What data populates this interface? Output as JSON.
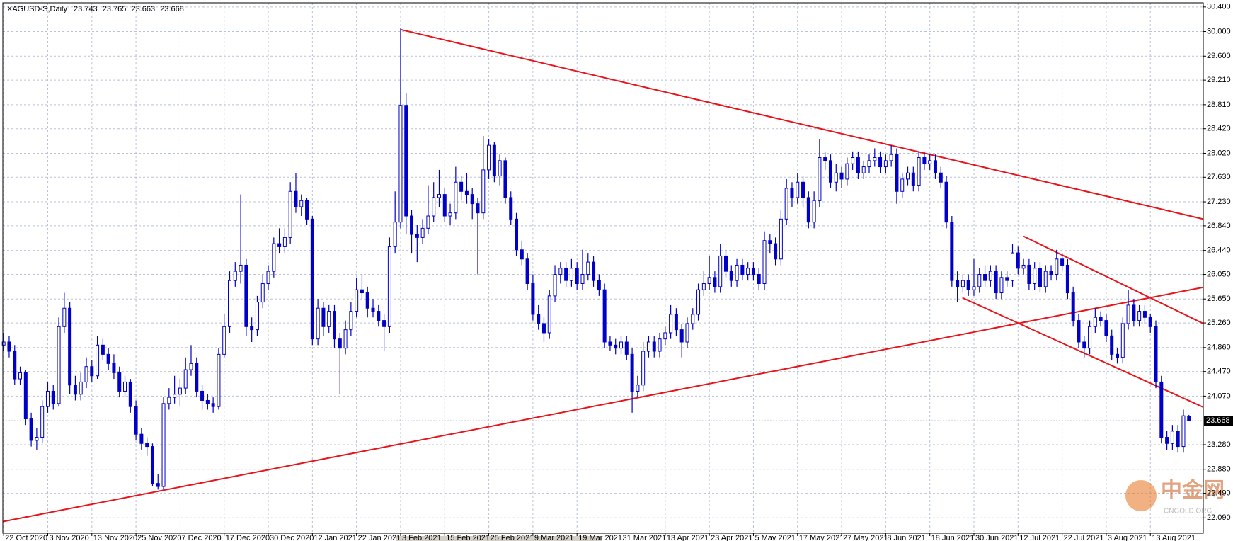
{
  "chart_data": {
    "type": "candlestick",
    "symbol": "XAGUSD-S,Daily",
    "color": "#0000c8",
    "trendline_color": "#e8141b",
    "grid": true,
    "watermark": "中金网",
    "watermark_sub": "CNGOLD.ORG",
    "xlim": [
      -0.15,
      217.6
    ],
    "ylim": [
      21.84,
      30.467
    ],
    "yticks": [
      {
        "value": 30.4,
        "label": "30.400"
      },
      {
        "value": 30.0,
        "label": "30.000"
      },
      {
        "value": 29.6,
        "label": "29.600"
      },
      {
        "value": 29.21,
        "label": "29.210"
      },
      {
        "value": 28.81,
        "label": "28.810"
      },
      {
        "value": 28.42,
        "label": "28.420"
      },
      {
        "value": 28.02,
        "label": "28.020"
      },
      {
        "value": 27.63,
        "label": "27.630"
      },
      {
        "value": 27.23,
        "label": "27.230"
      },
      {
        "value": 26.84,
        "label": "26.840"
      },
      {
        "value": 26.44,
        "label": "26.440"
      },
      {
        "value": 26.05,
        "label": "26.050"
      },
      {
        "value": 25.65,
        "label": "25.650"
      },
      {
        "value": 25.26,
        "label": "25.260"
      },
      {
        "value": 24.86,
        "label": "24.860"
      },
      {
        "value": 24.47,
        "label": "24.470"
      },
      {
        "value": 24.07,
        "label": "24.070"
      },
      {
        "value": 23.28,
        "label": "23.280"
      },
      {
        "value": 22.88,
        "label": "22.880"
      },
      {
        "value": 22.49,
        "label": "22.490"
      },
      {
        "value": 22.09,
        "label": "22.090"
      }
    ],
    "xticks": [
      {
        "value": 0,
        "label": "22 Oct 2020"
      },
      {
        "value": 8,
        "label": "3 Nov 2020"
      },
      {
        "value": 16,
        "label": "13 Nov 2020"
      },
      {
        "value": 24,
        "label": "25 Nov 2020"
      },
      {
        "value": 32,
        "label": "7 Dec 2020"
      },
      {
        "value": 40,
        "label": "17 Dec 2020"
      },
      {
        "value": 48,
        "label": "30 Dec 2020"
      },
      {
        "value": 56,
        "label": "12 Jan 2021"
      },
      {
        "value": 64,
        "label": "22 Jan 2021"
      },
      {
        "value": 72,
        "label": "3 Feb 2021"
      },
      {
        "value": 80,
        "label": "15 Feb 2021"
      },
      {
        "value": 88,
        "label": "25 Feb 2021"
      },
      {
        "value": 96,
        "label": "9 Mar 2021"
      },
      {
        "value": 104,
        "label": "19 Mar 2021"
      },
      {
        "value": 112,
        "label": "31 Mar 2021"
      },
      {
        "value": 120,
        "label": "13 Apr 2021"
      },
      {
        "value": 128,
        "label": "23 Apr 2021"
      },
      {
        "value": 136,
        "label": "5 May 2021"
      },
      {
        "value": 144,
        "label": "17 May 2021"
      },
      {
        "value": 152,
        "label": "27 May 2021"
      },
      {
        "value": 160,
        "label": "8 Jun 2021"
      },
      {
        "value": 168,
        "label": "18 Jun 2021"
      },
      {
        "value": 176,
        "label": "30 Jun 2021"
      },
      {
        "value": 184,
        "label": "12 Jul 2021"
      },
      {
        "value": 192,
        "label": "22 Jul 2021"
      },
      {
        "value": 200,
        "label": "3 Aug 2021"
      },
      {
        "value": 208,
        "label": "13 Aug 2021"
      }
    ],
    "trendlines": [
      [
        72.1,
        30.03,
        217.6,
        26.95
      ],
      [
        -0.1,
        22.03,
        217.6,
        25.84
      ],
      [
        185,
        26.67,
        217.6,
        25.25
      ],
      [
        173.9,
        25.67,
        217.6,
        23.89
      ]
    ],
    "candles": [
      [
        24.9,
        25.1,
        24.8,
        24.95
      ],
      [
        24.95,
        25.05,
        24.7,
        24.8
      ],
      [
        24.8,
        24.9,
        24.25,
        24.35
      ],
      [
        24.35,
        24.55,
        24.25,
        24.45
      ],
      [
        24.45,
        24.5,
        23.6,
        23.7
      ],
      [
        23.7,
        23.8,
        23.25,
        23.35
      ],
      [
        23.35,
        23.55,
        23.2,
        23.4
      ],
      [
        23.4,
        24.0,
        23.3,
        23.9
      ],
      [
        23.9,
        24.3,
        23.8,
        24.15
      ],
      [
        24.15,
        24.25,
        23.85,
        23.95
      ],
      [
        23.95,
        25.35,
        23.9,
        25.2
      ],
      [
        25.2,
        25.75,
        25.1,
        25.5
      ],
      [
        25.5,
        25.6,
        24.1,
        24.25
      ],
      [
        24.25,
        24.4,
        24.0,
        24.1
      ],
      [
        24.1,
        24.45,
        24.0,
        24.3
      ],
      [
        24.3,
        24.7,
        24.2,
        24.55
      ],
      [
        24.55,
        24.65,
        24.3,
        24.4
      ],
      [
        24.4,
        25.05,
        24.35,
        24.9
      ],
      [
        24.9,
        25.0,
        24.65,
        24.75
      ],
      [
        24.75,
        24.85,
        24.5,
        24.6
      ],
      [
        24.6,
        24.75,
        24.35,
        24.45
      ],
      [
        24.45,
        24.55,
        24.05,
        24.15
      ],
      [
        24.15,
        24.4,
        24.05,
        24.3
      ],
      [
        24.3,
        24.35,
        23.8,
        23.9
      ],
      [
        23.9,
        24.0,
        23.35,
        23.45
      ],
      [
        23.45,
        23.55,
        23.2,
        23.3
      ],
      [
        23.3,
        23.4,
        23.1,
        23.25
      ],
      [
        23.25,
        23.3,
        22.6,
        22.65
      ],
      [
        22.65,
        22.8,
        22.55,
        22.6
      ],
      [
        22.6,
        24.05,
        22.55,
        23.95
      ],
      [
        23.95,
        24.2,
        23.85,
        24.05
      ],
      [
        24.05,
        24.4,
        23.95,
        24.1
      ],
      [
        24.1,
        24.35,
        23.9,
        24.2
      ],
      [
        24.2,
        24.7,
        24.1,
        24.5
      ],
      [
        24.5,
        24.9,
        24.4,
        24.6
      ],
      [
        24.6,
        24.7,
        24.05,
        24.15
      ],
      [
        24.15,
        24.25,
        23.85,
        24.0
      ],
      [
        24.0,
        24.1,
        23.85,
        23.95
      ],
      [
        23.95,
        24.05,
        23.8,
        23.9
      ],
      [
        23.9,
        24.85,
        23.85,
        24.75
      ],
      [
        24.75,
        25.4,
        24.7,
        25.2
      ],
      [
        25.2,
        26.1,
        25.1,
        25.95
      ],
      [
        25.95,
        26.25,
        25.85,
        26.1
      ],
      [
        26.1,
        27.35,
        25.9,
        26.2
      ],
      [
        26.2,
        26.3,
        25.05,
        25.2
      ],
      [
        25.2,
        25.35,
        24.95,
        25.15
      ],
      [
        25.15,
        25.7,
        25.05,
        25.6
      ],
      [
        25.6,
        26.05,
        25.5,
        25.9
      ],
      [
        25.9,
        26.2,
        25.8,
        26.1
      ],
      [
        26.1,
        26.65,
        26.0,
        26.55
      ],
      [
        26.55,
        26.8,
        26.4,
        26.5
      ],
      [
        26.5,
        26.8,
        26.4,
        26.65
      ],
      [
        26.65,
        27.55,
        26.55,
        27.4
      ],
      [
        27.4,
        27.7,
        27.05,
        27.15
      ],
      [
        27.15,
        27.35,
        27.0,
        27.25
      ],
      [
        27.25,
        27.3,
        26.85,
        26.95
      ],
      [
        26.95,
        27.0,
        24.9,
        25.0
      ],
      [
        25.0,
        25.65,
        24.9,
        25.5
      ],
      [
        25.5,
        25.6,
        25.05,
        25.2
      ],
      [
        25.2,
        25.55,
        25.1,
        25.45
      ],
      [
        25.45,
        25.55,
        24.85,
        25.0
      ],
      [
        25.0,
        25.1,
        24.1,
        24.85
      ],
      [
        24.85,
        25.3,
        24.75,
        25.15
      ],
      [
        25.15,
        25.6,
        25.05,
        25.45
      ],
      [
        25.45,
        26.0,
        25.35,
        25.8
      ],
      [
        25.8,
        26.05,
        25.65,
        25.75
      ],
      [
        25.75,
        25.85,
        25.35,
        25.5
      ],
      [
        25.5,
        25.65,
        25.35,
        25.45
      ],
      [
        25.45,
        25.55,
        25.2,
        25.3
      ],
      [
        25.3,
        25.4,
        24.8,
        25.2
      ],
      [
        25.2,
        26.65,
        25.1,
        26.5
      ],
      [
        26.5,
        27.4,
        26.4,
        26.9
      ],
      [
        26.9,
        30.05,
        26.8,
        28.8
      ],
      [
        28.8,
        29.0,
        26.7,
        27.0
      ],
      [
        27.0,
        27.1,
        26.4,
        26.7
      ],
      [
        26.7,
        26.85,
        26.25,
        26.65
      ],
      [
        26.65,
        26.95,
        26.55,
        26.8
      ],
      [
        26.8,
        27.5,
        26.7,
        27.0
      ],
      [
        27.0,
        27.55,
        26.9,
        27.3
      ],
      [
        27.3,
        27.75,
        27.15,
        27.35
      ],
      [
        27.35,
        27.45,
        26.9,
        27.0
      ],
      [
        27.0,
        27.2,
        26.85,
        27.05
      ],
      [
        27.05,
        27.8,
        26.95,
        27.55
      ],
      [
        27.55,
        27.65,
        27.25,
        27.4
      ],
      [
        27.4,
        27.7,
        27.2,
        27.35
      ],
      [
        27.35,
        27.45,
        26.95,
        27.2
      ],
      [
        27.2,
        27.3,
        26.05,
        27.05
      ],
      [
        27.05,
        28.3,
        26.95,
        27.75
      ],
      [
        27.75,
        28.25,
        27.6,
        28.15
      ],
      [
        28.15,
        28.2,
        27.55,
        27.65
      ],
      [
        27.65,
        28.0,
        27.5,
        27.9
      ],
      [
        27.9,
        27.95,
        27.2,
        27.3
      ],
      [
        27.3,
        27.4,
        26.85,
        26.95
      ],
      [
        26.95,
        27.05,
        26.35,
        26.45
      ],
      [
        26.45,
        26.6,
        26.2,
        26.3
      ],
      [
        26.3,
        26.4,
        25.8,
        25.9
      ],
      [
        25.9,
        26.05,
        25.3,
        25.4
      ],
      [
        25.4,
        25.55,
        25.15,
        25.25
      ],
      [
        25.25,
        25.35,
        24.95,
        25.1
      ],
      [
        25.1,
        25.8,
        25.0,
        25.7
      ],
      [
        25.7,
        26.2,
        25.6,
        26.05
      ],
      [
        26.05,
        26.25,
        25.9,
        26.15
      ],
      [
        26.15,
        26.25,
        25.85,
        25.95
      ],
      [
        25.95,
        26.3,
        25.85,
        26.15
      ],
      [
        26.15,
        26.25,
        25.8,
        25.9
      ],
      [
        25.9,
        26.45,
        25.8,
        26.05
      ],
      [
        26.05,
        26.4,
        25.95,
        26.25
      ],
      [
        26.25,
        26.35,
        25.85,
        25.95
      ],
      [
        25.95,
        26.05,
        25.7,
        25.8
      ],
      [
        25.8,
        25.9,
        24.85,
        24.95
      ],
      [
        24.95,
        25.05,
        24.8,
        24.9
      ],
      [
        24.9,
        25.0,
        24.75,
        24.85
      ],
      [
        24.85,
        25.05,
        24.75,
        24.95
      ],
      [
        24.95,
        25.05,
        24.65,
        24.75
      ],
      [
        24.75,
        24.85,
        23.8,
        24.15
      ],
      [
        24.15,
        24.4,
        24.05,
        24.25
      ],
      [
        24.25,
        24.95,
        24.15,
        24.8
      ],
      [
        24.8,
        25.05,
        24.7,
        24.95
      ],
      [
        24.95,
        25.05,
        24.7,
        24.8
      ],
      [
        24.8,
        25.1,
        24.7,
        25.0
      ],
      [
        25.0,
        25.2,
        24.9,
        25.1
      ],
      [
        25.1,
        25.55,
        25.0,
        25.4
      ],
      [
        25.4,
        25.5,
        25.05,
        25.15
      ],
      [
        25.15,
        25.25,
        24.7,
        24.95
      ],
      [
        24.95,
        25.35,
        24.85,
        25.25
      ],
      [
        25.25,
        25.5,
        25.15,
        25.4
      ],
      [
        25.4,
        25.9,
        25.3,
        25.8
      ],
      [
        25.8,
        26.1,
        25.7,
        25.9
      ],
      [
        25.9,
        26.35,
        25.8,
        26.0
      ],
      [
        26.0,
        26.1,
        25.75,
        25.85
      ],
      [
        25.85,
        26.55,
        25.75,
        26.35
      ],
      [
        26.35,
        26.45,
        26.0,
        26.1
      ],
      [
        26.1,
        26.2,
        25.85,
        25.95
      ],
      [
        25.95,
        26.3,
        25.85,
        26.2
      ],
      [
        26.2,
        26.3,
        25.95,
        26.05
      ],
      [
        26.05,
        26.25,
        25.95,
        26.15
      ],
      [
        26.15,
        26.25,
        25.95,
        26.05
      ],
      [
        26.05,
        26.15,
        25.8,
        25.9
      ],
      [
        25.9,
        26.75,
        25.8,
        26.6
      ],
      [
        26.6,
        26.7,
        26.4,
        26.55
      ],
      [
        26.55,
        26.65,
        26.2,
        26.3
      ],
      [
        26.3,
        27.1,
        26.2,
        26.95
      ],
      [
        26.95,
        27.6,
        26.85,
        27.45
      ],
      [
        27.45,
        27.55,
        27.15,
        27.3
      ],
      [
        27.3,
        27.7,
        27.2,
        27.55
      ],
      [
        27.55,
        27.65,
        27.15,
        27.3
      ],
      [
        27.3,
        27.4,
        26.8,
        26.9
      ],
      [
        26.9,
        27.4,
        26.8,
        27.25
      ],
      [
        27.25,
        28.25,
        27.15,
        27.95
      ],
      [
        27.95,
        28.05,
        27.75,
        27.9
      ],
      [
        27.9,
        28.0,
        27.45,
        27.55
      ],
      [
        27.55,
        27.85,
        27.4,
        27.7
      ],
      [
        27.7,
        27.8,
        27.45,
        27.6
      ],
      [
        27.6,
        27.95,
        27.5,
        27.85
      ],
      [
        27.85,
        28.05,
        27.75,
        27.95
      ],
      [
        27.95,
        28.05,
        27.6,
        27.7
      ],
      [
        27.7,
        27.9,
        27.6,
        27.8
      ],
      [
        27.8,
        28.0,
        27.7,
        27.9
      ],
      [
        27.9,
        28.1,
        27.8,
        27.95
      ],
      [
        27.95,
        28.05,
        27.7,
        27.8
      ],
      [
        27.8,
        28.0,
        27.7,
        27.9
      ],
      [
        27.9,
        28.15,
        27.8,
        28.0
      ],
      [
        28.0,
        28.1,
        27.2,
        27.4
      ],
      [
        27.4,
        27.7,
        27.3,
        27.6
      ],
      [
        27.6,
        27.8,
        27.5,
        27.7
      ],
      [
        27.7,
        27.8,
        27.4,
        27.5
      ],
      [
        27.5,
        28.05,
        27.4,
        27.95
      ],
      [
        27.95,
        28.05,
        27.75,
        27.85
      ],
      [
        27.85,
        28.0,
        27.75,
        27.9
      ],
      [
        27.9,
        28.0,
        27.6,
        27.7
      ],
      [
        27.7,
        27.8,
        27.45,
        27.55
      ],
      [
        27.55,
        27.65,
        26.8,
        26.9
      ],
      [
        26.9,
        27.0,
        25.85,
        25.95
      ],
      [
        25.95,
        26.1,
        25.6,
        25.85
      ],
      [
        25.85,
        26.05,
        25.75,
        25.95
      ],
      [
        25.95,
        26.05,
        25.7,
        25.8
      ],
      [
        25.8,
        26.3,
        25.7,
        25.85
      ],
      [
        25.85,
        26.15,
        25.75,
        26.05
      ],
      [
        26.05,
        26.2,
        25.85,
        25.95
      ],
      [
        25.95,
        26.2,
        25.85,
        26.1
      ],
      [
        26.1,
        26.2,
        25.65,
        25.75
      ],
      [
        25.75,
        26.1,
        25.65,
        26.0
      ],
      [
        26.0,
        26.1,
        25.85,
        25.95
      ],
      [
        25.95,
        26.55,
        25.85,
        26.4
      ],
      [
        26.4,
        26.5,
        26.05,
        26.15
      ],
      [
        26.15,
        26.3,
        26.05,
        26.2
      ],
      [
        26.2,
        26.3,
        25.8,
        25.9
      ],
      [
        25.9,
        26.25,
        25.8,
        26.15
      ],
      [
        26.15,
        26.25,
        25.75,
        25.85
      ],
      [
        25.85,
        26.2,
        25.75,
        26.1
      ],
      [
        26.1,
        26.2,
        25.95,
        26.05
      ],
      [
        26.05,
        26.45,
        25.95,
        26.3
      ],
      [
        26.3,
        26.4,
        26.1,
        26.2
      ],
      [
        26.2,
        26.3,
        25.65,
        25.75
      ],
      [
        25.75,
        25.85,
        25.2,
        25.3
      ],
      [
        25.3,
        25.4,
        24.85,
        24.95
      ],
      [
        24.95,
        25.05,
        24.7,
        24.85
      ],
      [
        24.85,
        25.3,
        24.75,
        25.2
      ],
      [
        25.2,
        25.5,
        25.1,
        25.35
      ],
      [
        25.35,
        25.45,
        25.2,
        25.3
      ],
      [
        25.3,
        25.4,
        24.95,
        25.05
      ],
      [
        25.05,
        25.15,
        24.65,
        24.75
      ],
      [
        24.75,
        24.85,
        24.6,
        24.7
      ],
      [
        24.7,
        25.35,
        24.6,
        25.25
      ],
      [
        25.25,
        25.8,
        25.15,
        25.55
      ],
      [
        25.55,
        25.65,
        25.2,
        25.3
      ],
      [
        25.3,
        25.55,
        25.2,
        25.45
      ],
      [
        25.45,
        25.55,
        25.25,
        25.35
      ],
      [
        25.35,
        25.4,
        25.1,
        25.2
      ],
      [
        25.2,
        25.3,
        24.2,
        24.3
      ],
      [
        24.3,
        24.4,
        23.3,
        23.4
      ],
      [
        23.4,
        23.5,
        23.2,
        23.3
      ],
      [
        23.3,
        23.6,
        23.2,
        23.5
      ],
      [
        23.5,
        23.6,
        23.15,
        23.25
      ],
      [
        23.25,
        23.85,
        23.15,
        23.75
      ],
      [
        23.743,
        23.765,
        23.663,
        23.668
      ]
    ]
  }
}
